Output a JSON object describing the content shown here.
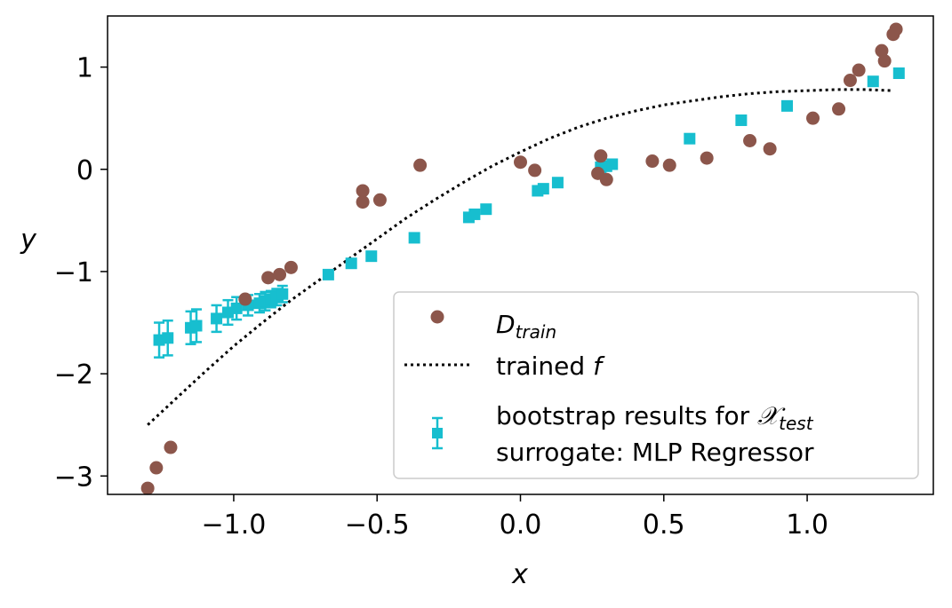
{
  "chart_data": {
    "type": "scatter",
    "xlabel": "x",
    "ylabel": "y",
    "xlim": [
      -1.44,
      1.44
    ],
    "ylim": [
      -3.18,
      1.5
    ],
    "xticks": [
      -1.0,
      -0.5,
      0.0,
      0.5,
      1.0
    ],
    "xtick_labels": [
      "−1.0",
      "−0.5",
      "0.0",
      "0.5",
      "1.0"
    ],
    "yticks": [
      -3,
      -2,
      -1,
      0,
      1
    ],
    "ytick_labels": [
      "−3",
      "−2",
      "−1",
      "0",
      "1"
    ],
    "grid": false,
    "legend_position": "lower-right",
    "colors": {
      "train": "#8c564b",
      "bootstrap": "#17becf",
      "trained_f": "#000000"
    },
    "legend": [
      {
        "label": "D",
        "subscript": "train"
      },
      {
        "label": "trained ",
        "italic_suffix": "f"
      },
      {
        "label": "bootstrap results for ",
        "script": "𝒳",
        "subscript": "test",
        "line2": "surrogate: MLP Regressor"
      }
    ],
    "series": [
      {
        "name": "D_train",
        "kind": "scatter",
        "x": [
          -1.3,
          -1.27,
          -1.22,
          -0.96,
          -0.88,
          -0.84,
          -0.8,
          -0.55,
          -0.55,
          -0.49,
          -0.35,
          -0.0,
          0.05,
          0.27,
          0.28,
          0.3,
          0.46,
          0.52,
          0.65,
          0.8,
          0.87,
          1.02,
          1.11,
          1.15,
          1.18,
          1.26,
          1.27,
          1.3,
          1.31
        ],
        "y": [
          -3.12,
          -2.92,
          -2.72,
          -1.27,
          -1.06,
          -1.03,
          -0.96,
          -0.21,
          -0.32,
          -0.3,
          0.04,
          0.07,
          -0.01,
          -0.04,
          0.13,
          -0.1,
          0.08,
          0.04,
          0.11,
          0.28,
          0.2,
          0.5,
          0.59,
          0.87,
          0.97,
          1.16,
          1.06,
          1.32,
          1.37
        ]
      },
      {
        "name": "trained f",
        "kind": "line",
        "x": [
          -1.3,
          -1.2,
          -1.1,
          -1.0,
          -0.9,
          -0.8,
          -0.7,
          -0.6,
          -0.5,
          -0.4,
          -0.3,
          -0.2,
          -0.1,
          0.0,
          0.1,
          0.2,
          0.3,
          0.4,
          0.5,
          0.6,
          0.7,
          0.8,
          0.9,
          1.0,
          1.1,
          1.2,
          1.3
        ],
        "y": [
          -2.5,
          -2.24,
          -1.98,
          -1.73,
          -1.5,
          -1.28,
          -1.08,
          -0.88,
          -0.68,
          -0.48,
          -0.3,
          -0.13,
          0.03,
          0.17,
          0.3,
          0.41,
          0.5,
          0.57,
          0.63,
          0.67,
          0.71,
          0.74,
          0.76,
          0.77,
          0.78,
          0.78,
          0.77
        ]
      },
      {
        "name": "bootstrap results",
        "kind": "errorbar",
        "x": [
          -1.26,
          -1.23,
          -1.15,
          -1.13,
          -1.06,
          -1.02,
          -0.99,
          -0.95,
          -0.91,
          -0.89,
          -0.87,
          -0.85,
          -0.83,
          -0.67,
          -0.59,
          -0.52,
          -0.37,
          -0.18,
          -0.16,
          -0.12,
          0.06,
          0.08,
          0.13,
          0.28,
          0.3,
          0.32,
          0.59,
          0.77,
          0.93,
          1.23,
          1.32
        ],
        "y": [
          -1.67,
          -1.65,
          -1.55,
          -1.53,
          -1.46,
          -1.4,
          -1.36,
          -1.33,
          -1.31,
          -1.29,
          -1.27,
          -1.25,
          -1.22,
          -1.03,
          -0.92,
          -0.85,
          -0.67,
          -0.47,
          -0.44,
          -0.39,
          -0.21,
          -0.19,
          -0.13,
          0.02,
          0.03,
          0.05,
          0.3,
          0.48,
          0.62,
          0.86,
          0.94
        ],
        "err": [
          0.17,
          0.17,
          0.16,
          0.16,
          0.13,
          0.12,
          0.11,
          0.1,
          0.09,
          0.09,
          0.08,
          0.08,
          0.08,
          0.03,
          0.02,
          0.02,
          0.01,
          0.01,
          0.01,
          0.01,
          0.01,
          0.01,
          0.01,
          0.01,
          0.01,
          0.01,
          0.01,
          0.01,
          0.01,
          0.01,
          0.01
        ]
      }
    ]
  }
}
